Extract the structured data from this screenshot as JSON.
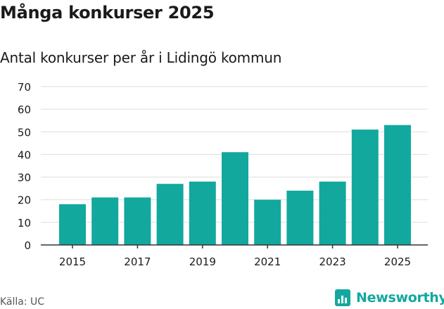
{
  "header": {
    "title": "Många konkurser 2025",
    "subtitle": "Antal konkurser per år i Lidingö kommun"
  },
  "footer": {
    "source": "Källa: UC",
    "brand": "Newsworthy",
    "brand_icon": "newsworthy-logo-icon"
  },
  "colors": {
    "bar": "#13a89e",
    "grid": "#dddddd",
    "axis": "#333333",
    "text": "#1a1a1a"
  },
  "chart_data": {
    "type": "bar",
    "title": "Många konkurser 2025",
    "subtitle": "Antal konkurser per år i Lidingö kommun",
    "categories": [
      "2015",
      "2016",
      "2017",
      "2018",
      "2019",
      "2020",
      "2021",
      "2022",
      "2023",
      "2024",
      "2025"
    ],
    "values": [
      18,
      21,
      21,
      27,
      28,
      41,
      20,
      24,
      28,
      51,
      53
    ],
    "x_tick_labels": [
      "2015",
      "2017",
      "2019",
      "2021",
      "2023",
      "2025"
    ],
    "y_ticks": [
      0,
      10,
      20,
      30,
      40,
      50,
      60,
      70
    ],
    "ylim": [
      0,
      70
    ],
    "xlabel": "",
    "ylabel": "",
    "grid": true
  }
}
